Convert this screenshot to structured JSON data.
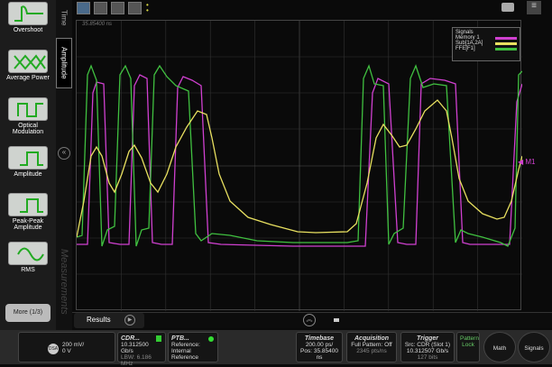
{
  "sidebar": {
    "items": [
      {
        "label": "Overshoot"
      },
      {
        "label": "Average Power"
      },
      {
        "label": "Optical Modulation"
      },
      {
        "label": "Amplitude"
      },
      {
        "label": "Peak-Peak Amplitude"
      },
      {
        "label": "RMS"
      }
    ],
    "more_label": "More (1/3)"
  },
  "tabs": {
    "time": "Time",
    "amplitude": "Amplitude",
    "measurements": "Measurements"
  },
  "plot": {
    "time_label": "35.85400 ns",
    "marker_label": "M1",
    "legend": {
      "title": "Signals",
      "items": [
        {
          "label": "Memory 1",
          "color": "#d040d0"
        },
        {
          "label": "Sub[1A,2A]",
          "color": "#e8e060"
        },
        {
          "label": "FFE[F1]",
          "color": "#40c040"
        }
      ]
    }
  },
  "results": {
    "label": "Results"
  },
  "status": {
    "channel": {
      "badge": "DSA",
      "scale": "200 mV/",
      "offset": "0 V"
    },
    "cdr": {
      "title": "CDR...",
      "rate": "10.312500 Gb/s",
      "lbw": "LBW: 6.186 MHz"
    },
    "ptb": {
      "title": "PTB...",
      "ref_label": "Reference:",
      "ref_value": "Internal Reference"
    },
    "timebase": {
      "title": "Timebase",
      "scale": "200.00 ps/",
      "pos": "Pos: 35.85400 ns"
    },
    "acquisition": {
      "title": "Acquisition",
      "line1": "Full Pattern: Off",
      "line2": "2345 pts/ns"
    },
    "trigger": {
      "title": "Trigger",
      "src": "Src: CDR (Slot 1)",
      "rate": "10.312507 Gb/s",
      "line3": "127 bits"
    },
    "pattern": {
      "title": "Pattern",
      "lock": "Lock"
    },
    "math": "Math",
    "signals": "Signals"
  }
}
